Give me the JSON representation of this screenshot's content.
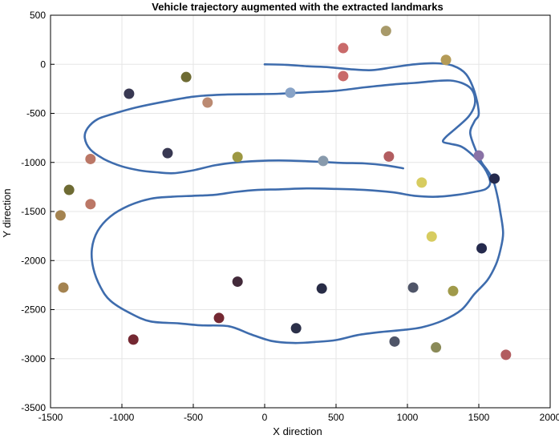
{
  "chart_data": {
    "type": "scatter",
    "title": "Vehicle trajectory augmented with the extracted landmarks",
    "xlabel": "X direction",
    "ylabel": "Y direction",
    "xlim": [
      -1500,
      2000
    ],
    "ylim": [
      -3500,
      500
    ],
    "xticks": [
      -1500,
      -1000,
      -500,
      0,
      500,
      1000,
      1500,
      2000
    ],
    "yticks": [
      500,
      0,
      -500,
      -1000,
      -1500,
      -2000,
      -2500,
      -3000,
      -3500
    ],
    "grid": true,
    "legend": "none",
    "trajectory": {
      "color": "#3e6cad",
      "x": [
        0,
        150,
        300,
        450,
        600,
        750,
        900,
        1050,
        1200,
        1320,
        1410,
        1470,
        1500,
        1470,
        1440,
        1480,
        1520,
        1560,
        1600,
        1630,
        1650,
        1670,
        1650,
        1620,
        1560,
        1470,
        1380,
        1250,
        1100,
        950,
        800,
        650,
        500,
        350,
        200,
        50,
        -100,
        -250,
        -450,
        -600,
        -800,
        -950,
        -1080,
        -1150,
        -1200,
        -1210,
        -1170,
        -1080,
        -950,
        -800,
        -650,
        -500,
        -350,
        -200,
        -50,
        100,
        300,
        500,
        700,
        900,
        1050,
        1200,
        1350,
        1470,
        1550,
        1580,
        1540,
        1460,
        1380,
        1300,
        1250,
        1270,
        1350,
        1430,
        1470,
        1470,
        1440,
        1380,
        1300,
        1200,
        1050,
        900,
        700,
        500,
        300,
        100,
        -100,
        -300,
        -500,
        -700,
        -900,
        -1050,
        -1170,
        -1240,
        -1260,
        -1220,
        -1120,
        -1000,
        -880,
        -760,
        -640,
        -500,
        -350,
        -200,
        -50,
        100,
        250,
        400,
        550,
        700,
        850,
        970
      ],
      "y": [
        0,
        -5,
        -20,
        -30,
        -50,
        -60,
        -30,
        0,
        10,
        -15,
        -100,
        -280,
        -500,
        -580,
        -700,
        -880,
        -1000,
        -1080,
        -1180,
        -1340,
        -1500,
        -1720,
        -1900,
        -2040,
        -2200,
        -2340,
        -2500,
        -2610,
        -2680,
        -2710,
        -2730,
        -2760,
        -2810,
        -2830,
        -2840,
        -2820,
        -2750,
        -2670,
        -2660,
        -2640,
        -2620,
        -2530,
        -2410,
        -2270,
        -2080,
        -1880,
        -1700,
        -1550,
        -1440,
        -1370,
        -1350,
        -1340,
        -1330,
        -1300,
        -1280,
        -1275,
        -1265,
        -1270,
        -1280,
        -1305,
        -1340,
        -1350,
        -1330,
        -1300,
        -1270,
        -1200,
        -1060,
        -930,
        -840,
        -810,
        -790,
        -740,
        -640,
        -530,
        -420,
        -320,
        -240,
        -190,
        -165,
        -170,
        -190,
        -205,
        -235,
        -270,
        -285,
        -300,
        -305,
        -310,
        -330,
        -380,
        -440,
        -500,
        -560,
        -650,
        -750,
        -870,
        -970,
        -1040,
        -1080,
        -1100,
        -1110,
        -1080,
        -1030,
        -1000,
        -985,
        -980,
        -985,
        -995,
        -1005,
        -1010,
        -1030,
        -1060
      ],
      "note_order": "ignore"
    },
    "landmarks": [
      {
        "x": 850,
        "y": 340,
        "color": "#a89a6a"
      },
      {
        "x": 550,
        "y": 165,
        "color": "#c96a6a"
      },
      {
        "x": 1270,
        "y": 45,
        "color": "#b49b57"
      },
      {
        "x": -550,
        "y": -130,
        "color": "#6e6b33"
      },
      {
        "x": 550,
        "y": -120,
        "color": "#c96a6a"
      },
      {
        "x": -950,
        "y": -300,
        "color": "#383852"
      },
      {
        "x": 180,
        "y": -290,
        "color": "#88a3c7"
      },
      {
        "x": -400,
        "y": -390,
        "color": "#bb8a72"
      },
      {
        "x": -680,
        "y": -905,
        "color": "#383852"
      },
      {
        "x": -1220,
        "y": -965,
        "color": "#bb7766"
      },
      {
        "x": -190,
        "y": -945,
        "color": "#9d9842"
      },
      {
        "x": 410,
        "y": -985,
        "color": "#889aac"
      },
      {
        "x": 870,
        "y": -940,
        "color": "#b25d60"
      },
      {
        "x": 1500,
        "y": -930,
        "color": "#8a72a6"
      },
      {
        "x": 1610,
        "y": -1165,
        "color": "#252a4d"
      },
      {
        "x": 1100,
        "y": -1205,
        "color": "#d7cc60"
      },
      {
        "x": -1370,
        "y": -1280,
        "color": "#6e6b33"
      },
      {
        "x": -1220,
        "y": -1425,
        "color": "#bb7766"
      },
      {
        "x": -1430,
        "y": -1540,
        "color": "#a48350"
      },
      {
        "x": 1170,
        "y": -1755,
        "color": "#d7cc60"
      },
      {
        "x": 1520,
        "y": -1875,
        "color": "#252a4d"
      },
      {
        "x": -190,
        "y": -2215,
        "color": "#432a3a"
      },
      {
        "x": 400,
        "y": -2285,
        "color": "#282c46"
      },
      {
        "x": 1040,
        "y": -2275,
        "color": "#4f5568"
      },
      {
        "x": 1320,
        "y": -2310,
        "color": "#a09a4a"
      },
      {
        "x": -1410,
        "y": -2275,
        "color": "#a48350"
      },
      {
        "x": -320,
        "y": -2585,
        "color": "#742832"
      },
      {
        "x": 220,
        "y": -2690,
        "color": "#2b3049"
      },
      {
        "x": -920,
        "y": -2805,
        "color": "#742832"
      },
      {
        "x": 910,
        "y": -2825,
        "color": "#4f5568"
      },
      {
        "x": 1200,
        "y": -2885,
        "color": "#8a8a58"
      },
      {
        "x": 1690,
        "y": -2960,
        "color": "#b25d60"
      }
    ]
  }
}
